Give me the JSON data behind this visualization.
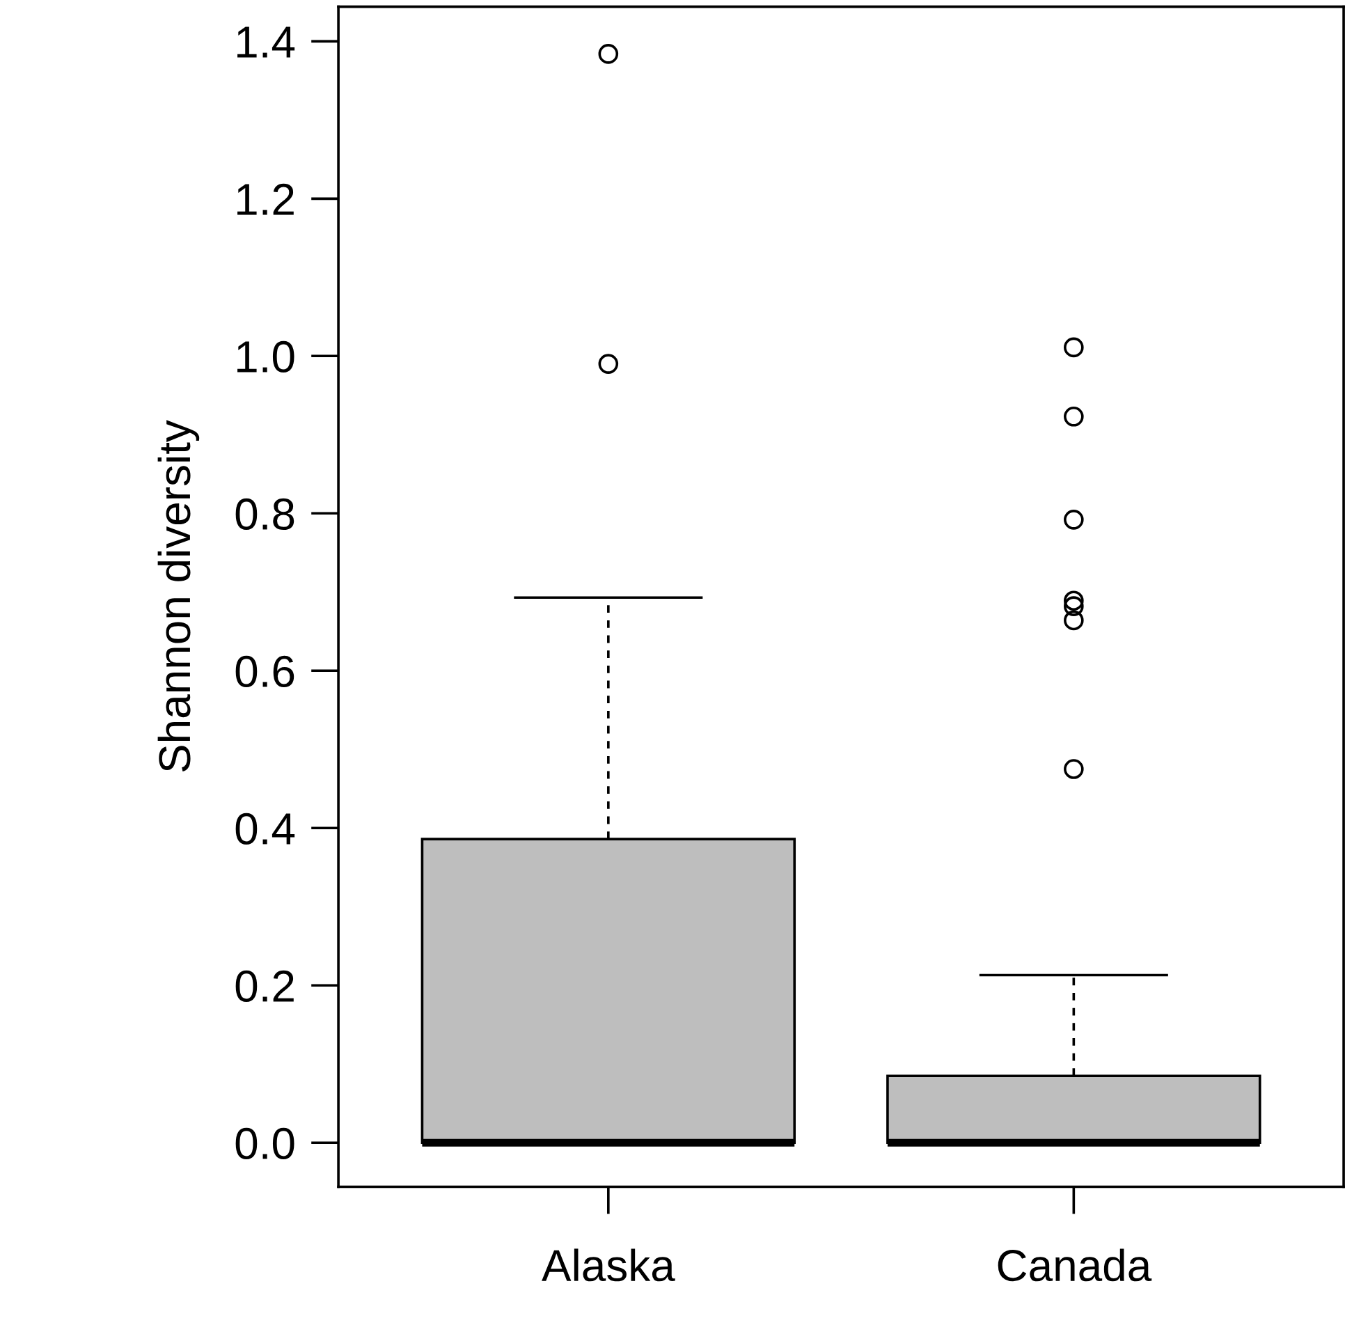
{
  "chart_data": {
    "type": "box",
    "ylabel": "Shannon diversity",
    "categories": [
      "Alaska",
      "Canada"
    ],
    "color": "#bebebe",
    "boxes": [
      {
        "low": 0,
        "q1": 0,
        "median": 0,
        "q3": 0.386,
        "high": 0.693,
        "outliers": [
          1.384,
          0.99
        ]
      },
      {
        "low": 0,
        "q1": 0,
        "median": 0,
        "q3": 0.085,
        "high": 0.213,
        "outliers": [
          1.011,
          0.923,
          0.792,
          0.689,
          0.682,
          0.664,
          0.475
        ]
      }
    ],
    "ylim": [
      -0.056,
      1.444
    ],
    "yticks": [
      {
        "value": 0,
        "label": "0.0"
      },
      0.2,
      0.4,
      0.6,
      0.8,
      {
        "value": 1,
        "label": "1.0"
      },
      1.2,
      1.4
    ]
  }
}
